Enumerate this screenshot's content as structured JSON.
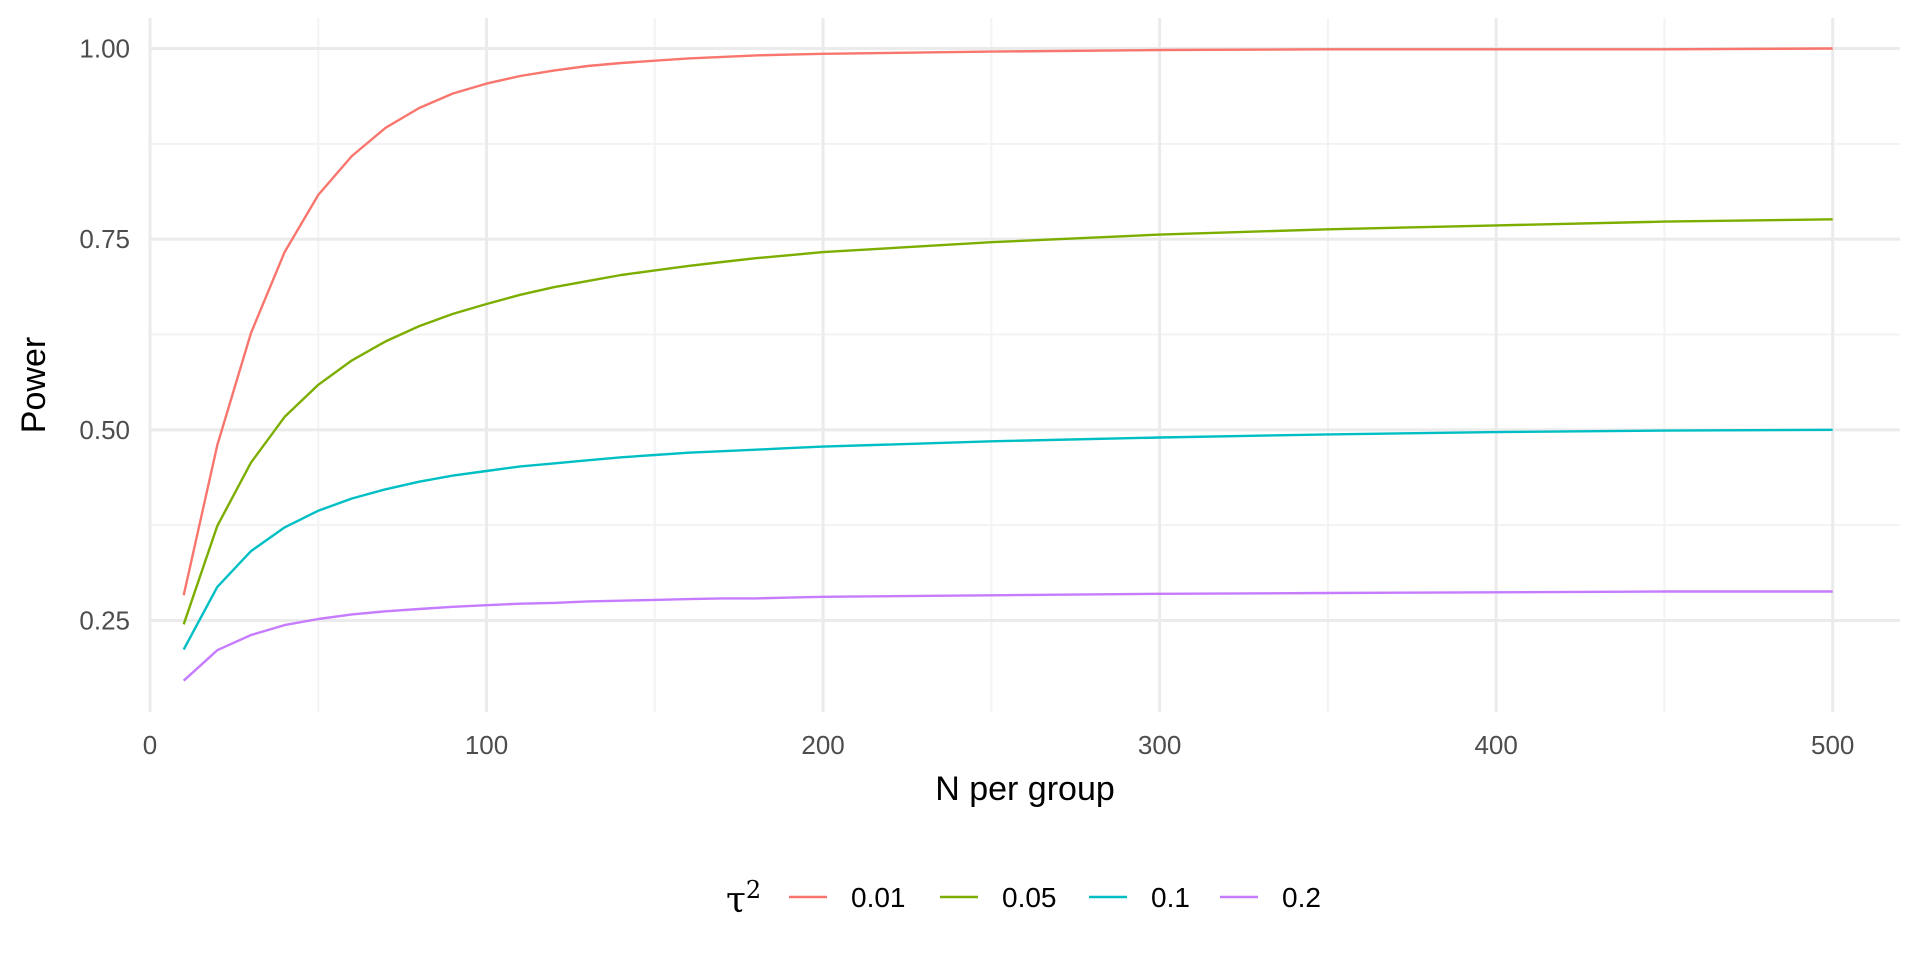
{
  "chart_data": {
    "type": "line",
    "xlabel": "N per group",
    "ylabel": "Power",
    "xlim": [
      0,
      520
    ],
    "ylim": [
      0.13,
      1.04
    ],
    "x_ticks": [
      0,
      100,
      200,
      300,
      400,
      500
    ],
    "x_tick_labels": [
      "0",
      "100",
      "200",
      "300",
      "400",
      "500"
    ],
    "y_ticks": [
      0.25,
      0.5,
      0.75,
      1.0
    ],
    "y_tick_labels": [
      "0.25",
      "0.50",
      "0.75",
      "1.00"
    ],
    "grid": true,
    "legend": {
      "title": "τ",
      "title_superscript": "2",
      "position": "bottom"
    },
    "x": [
      10,
      20,
      30,
      40,
      50,
      60,
      70,
      80,
      90,
      100,
      110,
      120,
      130,
      140,
      150,
      160,
      170,
      180,
      190,
      200,
      250,
      300,
      350,
      400,
      450,
      500
    ],
    "series": [
      {
        "name": "0.01",
        "color": "#F8766D",
        "values": [
          0.283,
          0.48,
          0.627,
          0.733,
          0.808,
          0.859,
          0.896,
          0.922,
          0.941,
          0.954,
          0.964,
          0.971,
          0.977,
          0.981,
          0.984,
          0.987,
          0.989,
          0.991,
          0.992,
          0.993,
          0.996,
          0.998,
          0.999,
          0.999,
          0.999,
          1.0
        ]
      },
      {
        "name": "0.05",
        "color": "#7CAE00",
        "values": [
          0.245,
          0.374,
          0.457,
          0.517,
          0.559,
          0.591,
          0.616,
          0.636,
          0.652,
          0.665,
          0.677,
          0.687,
          0.695,
          0.703,
          0.709,
          0.715,
          0.72,
          0.725,
          0.729,
          0.733,
          0.746,
          0.756,
          0.763,
          0.768,
          0.773,
          0.776
        ]
      },
      {
        "name": "0.1",
        "color": "#00BFC4",
        "values": [
          0.212,
          0.294,
          0.341,
          0.372,
          0.394,
          0.41,
          0.422,
          0.432,
          0.44,
          0.446,
          0.452,
          0.456,
          0.46,
          0.464,
          0.467,
          0.47,
          0.472,
          0.474,
          0.476,
          0.478,
          0.485,
          0.49,
          0.494,
          0.497,
          0.499,
          0.5
        ]
      },
      {
        "name": "0.2",
        "color": "#C77CFF",
        "values": [
          0.171,
          0.211,
          0.231,
          0.244,
          0.252,
          0.258,
          0.262,
          0.265,
          0.268,
          0.27,
          0.272,
          0.273,
          0.275,
          0.276,
          0.277,
          0.278,
          0.279,
          0.279,
          0.28,
          0.281,
          0.283,
          0.285,
          0.286,
          0.287,
          0.288,
          0.288
        ]
      }
    ]
  }
}
